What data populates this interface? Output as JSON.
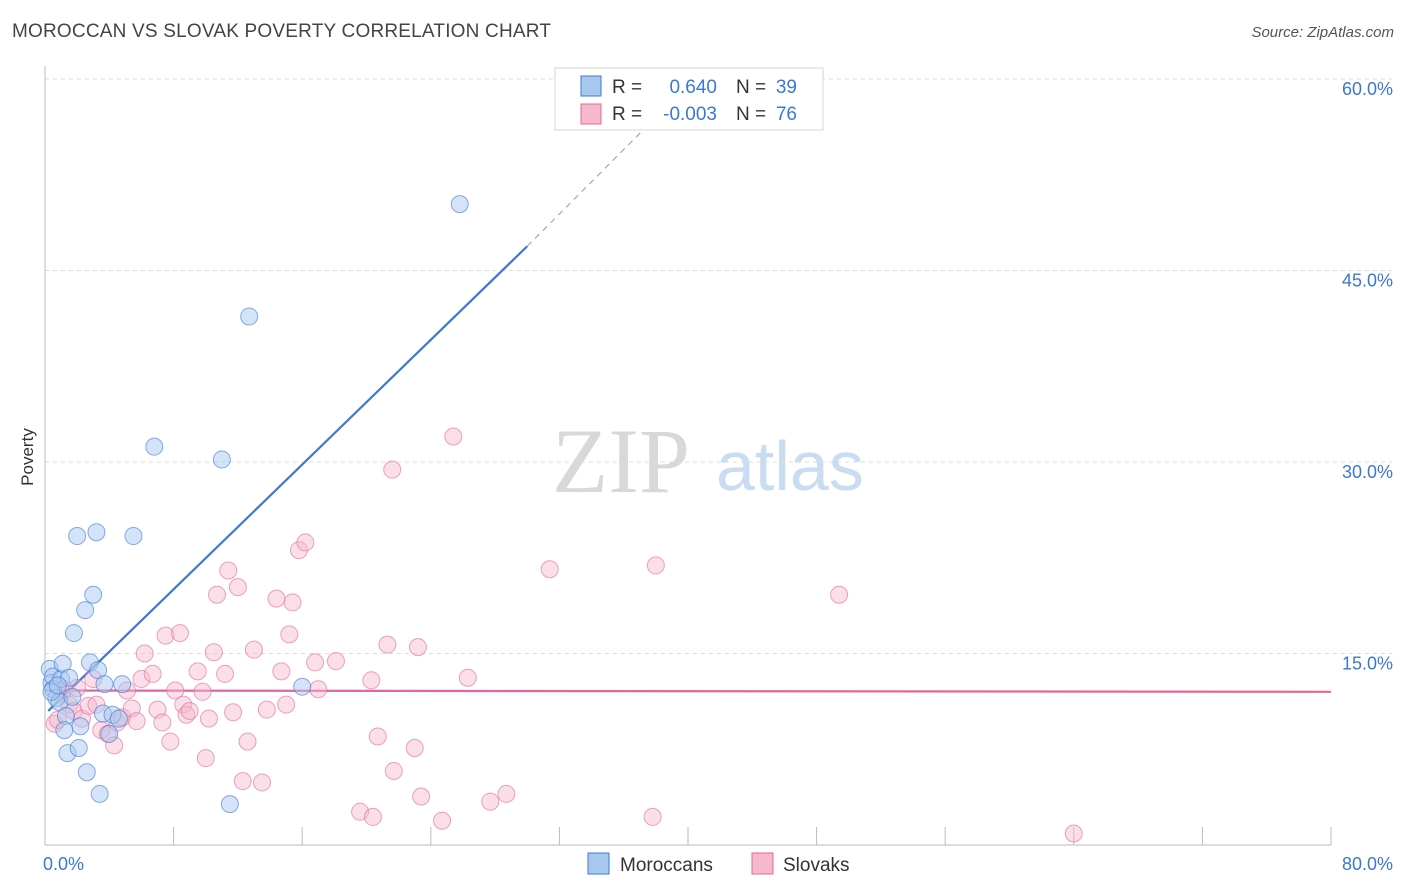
{
  "title": "MOROCCAN VS SLOVAK POVERTY CORRELATION CHART",
  "source": "Source: ZipAtlas.com",
  "watermark": {
    "zip": "ZIP",
    "atlas": "atlas"
  },
  "colors": {
    "blue": "#3b78d1",
    "blue_fill": "#a9c8ef",
    "pink": "#e0689a",
    "pink_fill": "#f5b8cd",
    "grid": "#dcdcdc"
  },
  "legend": {
    "series1": {
      "r_label": "R =",
      "r_value": "0.640",
      "n_label": "N =",
      "n_value": "39"
    },
    "series2": {
      "r_label": "R =",
      "r_value": "-0.003",
      "n_label": "N =",
      "n_value": "76"
    }
  },
  "bottom_legend": [
    "Moroccans",
    "Slovaks"
  ],
  "chart_data": {
    "type": "scatter",
    "title": "MOROCCAN VS SLOVAK POVERTY CORRELATION CHART",
    "xlabel": "",
    "ylabel": "Poverty",
    "xlim": [
      0,
      80
    ],
    "ylim": [
      0,
      60
    ],
    "x_tick_labels": [
      "0.0%",
      "80.0%"
    ],
    "y_ticks": [
      15,
      30,
      45,
      60
    ],
    "y_tick_labels": [
      "15.0%",
      "30.0%",
      "45.0%",
      "60.0%"
    ],
    "series": [
      {
        "name": "Moroccans",
        "r": 0.64,
        "n": 39,
        "trend": {
          "x0": 0.2,
          "y0": 10.5,
          "x1": 30,
          "y1": 46.9,
          "dash_to_x": 38,
          "dash_to_y": 57
        },
        "points": [
          [
            0.3,
            13.8
          ],
          [
            0.4,
            12.7
          ],
          [
            0.5,
            13.2
          ],
          [
            0.5,
            12.2
          ],
          [
            0.7,
            11.5
          ],
          [
            0.9,
            11.2
          ],
          [
            1.0,
            13.0
          ],
          [
            1.1,
            14.2
          ],
          [
            1.3,
            10.1
          ],
          [
            1.4,
            7.2
          ],
          [
            1.5,
            13.1
          ],
          [
            1.7,
            11.6
          ],
          [
            1.8,
            16.6
          ],
          [
            2.0,
            24.2
          ],
          [
            2.1,
            7.6
          ],
          [
            2.2,
            9.3
          ],
          [
            2.5,
            18.4
          ],
          [
            2.6,
            5.7
          ],
          [
            2.8,
            14.3
          ],
          [
            3.0,
            19.6
          ],
          [
            3.2,
            24.5
          ],
          [
            3.3,
            13.7
          ],
          [
            3.4,
            4.0
          ],
          [
            3.6,
            10.3
          ],
          [
            3.7,
            12.6
          ],
          [
            4.0,
            8.7
          ],
          [
            4.2,
            10.2
          ],
          [
            4.6,
            9.9
          ],
          [
            4.8,
            12.6
          ],
          [
            5.5,
            24.2
          ],
          [
            6.8,
            31.2
          ],
          [
            11.0,
            30.2
          ],
          [
            11.5,
            3.2
          ],
          [
            12.7,
            41.4
          ],
          [
            16.0,
            12.4
          ],
          [
            25.8,
            50.2
          ],
          [
            0.4,
            12.0
          ],
          [
            0.8,
            12.5
          ],
          [
            1.2,
            9.0
          ]
        ]
      },
      {
        "name": "Slovaks",
        "r": -0.003,
        "n": 76,
        "trend": {
          "x0": 0,
          "y0": 12.1,
          "x1": 80,
          "y1": 12.0
        },
        "points": [
          [
            0.6,
            9.5
          ],
          [
            0.8,
            9.8
          ],
          [
            1.0,
            11.8
          ],
          [
            1.2,
            12.2
          ],
          [
            1.5,
            11.0
          ],
          [
            1.8,
            10.5
          ],
          [
            2.0,
            12.3
          ],
          [
            2.3,
            9.9
          ],
          [
            2.7,
            10.9
          ],
          [
            3.0,
            13.0
          ],
          [
            3.2,
            11.0
          ],
          [
            3.5,
            9.0
          ],
          [
            3.9,
            8.7
          ],
          [
            4.3,
            7.8
          ],
          [
            4.5,
            9.6
          ],
          [
            4.8,
            10.0
          ],
          [
            5.1,
            12.1
          ],
          [
            5.4,
            10.7
          ],
          [
            5.7,
            9.7
          ],
          [
            6.0,
            13.0
          ],
          [
            6.2,
            15.0
          ],
          [
            6.7,
            13.4
          ],
          [
            7.0,
            10.6
          ],
          [
            7.3,
            9.6
          ],
          [
            7.5,
            16.4
          ],
          [
            7.8,
            8.1
          ],
          [
            8.1,
            12.1
          ],
          [
            8.4,
            16.6
          ],
          [
            8.6,
            11.0
          ],
          [
            8.8,
            10.2
          ],
          [
            9.0,
            10.5
          ],
          [
            9.5,
            13.6
          ],
          [
            9.8,
            12.0
          ],
          [
            10.0,
            6.8
          ],
          [
            10.2,
            9.9
          ],
          [
            10.5,
            15.1
          ],
          [
            10.7,
            19.6
          ],
          [
            11.2,
            13.4
          ],
          [
            11.4,
            21.5
          ],
          [
            11.7,
            10.4
          ],
          [
            12.0,
            20.2
          ],
          [
            12.3,
            5.0
          ],
          [
            12.6,
            8.1
          ],
          [
            13.0,
            15.3
          ],
          [
            13.5,
            4.9
          ],
          [
            13.8,
            10.6
          ],
          [
            14.4,
            19.3
          ],
          [
            14.7,
            13.6
          ],
          [
            15.0,
            11.0
          ],
          [
            15.2,
            16.5
          ],
          [
            15.4,
            19.0
          ],
          [
            15.8,
            23.1
          ],
          [
            16.2,
            23.7
          ],
          [
            16.8,
            14.3
          ],
          [
            17.0,
            12.2
          ],
          [
            18.1,
            14.4
          ],
          [
            19.6,
            2.6
          ],
          [
            20.3,
            12.9
          ],
          [
            20.4,
            2.2
          ],
          [
            20.7,
            8.5
          ],
          [
            21.3,
            15.7
          ],
          [
            21.6,
            29.4
          ],
          [
            21.7,
            5.8
          ],
          [
            23.2,
            15.5
          ],
          [
            23.0,
            7.6
          ],
          [
            23.4,
            3.8
          ],
          [
            24.7,
            1.9
          ],
          [
            25.4,
            32.0
          ],
          [
            26.3,
            13.1
          ],
          [
            27.7,
            3.4
          ],
          [
            28.7,
            4.0
          ],
          [
            31.4,
            21.6
          ],
          [
            37.8,
            2.2
          ],
          [
            38.0,
            21.9
          ],
          [
            49.4,
            19.6
          ],
          [
            64.0,
            0.9
          ]
        ]
      }
    ]
  }
}
